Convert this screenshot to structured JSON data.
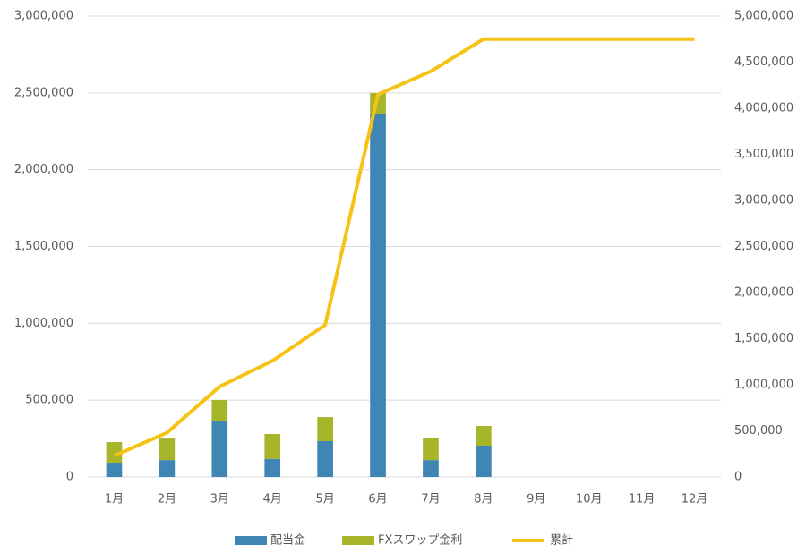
{
  "chart_data": {
    "type": "bar-line",
    "categories": [
      "1月",
      "2月",
      "3月",
      "4月",
      "5月",
      "6月",
      "7月",
      "8月",
      "9月",
      "10月",
      "11月",
      "12月"
    ],
    "series": [
      {
        "name": "配当金",
        "type": "bar",
        "color": "#3f86b4",
        "values": [
          93000,
          110000,
          361000,
          117000,
          233000,
          2365000,
          110000,
          204000,
          null,
          null,
          null,
          null
        ]
      },
      {
        "name": "FXスワップ金利",
        "type": "bar",
        "color": "#a7b52b",
        "values": [
          134000,
          140000,
          140000,
          163000,
          157000,
          134000,
          146000,
          128000,
          null,
          null,
          null,
          null
        ]
      },
      {
        "name": "累計",
        "type": "line",
        "axis": "y2",
        "color": "#f6c315",
        "values": [
          230000,
          480000,
          980000,
          1260000,
          1650000,
          4150000,
          4400000,
          4750000,
          4750000,
          4750000,
          4750000,
          4750000
        ]
      }
    ],
    "stacked": true,
    "ylim": [
      0,
      3000000
    ],
    "yticks": [
      0,
      {
        "value": 500000,
        "label": "500,000"
      },
      {
        "value": 1000000,
        "label": "1,000,000"
      },
      {
        "value": 1500000,
        "label": "1,500,000"
      },
      {
        "value": 2000000,
        "label": "2,000,000"
      },
      {
        "value": 2500000,
        "label": "2,500,000"
      },
      {
        "value": 3000000,
        "label": "3,000,000"
      }
    ],
    "y2lim": [
      0,
      5000000
    ],
    "y2ticks": [
      0,
      {
        "value": 500000,
        "label": "500,000"
      },
      {
        "value": 1000000,
        "label": "1,000,000"
      },
      {
        "value": 1500000,
        "label": "1,500,000"
      },
      {
        "value": 2000000,
        "label": "2,000,000"
      },
      {
        "value": 2500000,
        "label": "2,500,000"
      },
      {
        "value": 3000000,
        "label": "3,000,000"
      },
      {
        "value": 3500000,
        "label": "3,500,000"
      },
      {
        "value": 4000000,
        "label": "4,000,000"
      },
      {
        "value": 4500000,
        "label": "4,500,000"
      },
      {
        "value": 5000000,
        "label": "5,000,000"
      }
    ],
    "grid": true,
    "legend": "bottom"
  }
}
